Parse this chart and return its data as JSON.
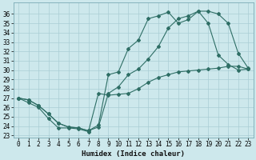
{
  "xlabel": "Humidex (Indice chaleur)",
  "bg_color": "#cde8ec",
  "line_color": "#2e6e65",
  "grid_color": "#aacdd4",
  "xlim_min": -0.5,
  "xlim_max": 23.5,
  "ylim_min": 22.8,
  "ylim_max": 37.2,
  "xticks": [
    0,
    1,
    2,
    3,
    4,
    5,
    6,
    7,
    8,
    9,
    10,
    11,
    12,
    13,
    14,
    15,
    16,
    17,
    18,
    19,
    20,
    21,
    22,
    23
  ],
  "yticks": [
    23,
    24,
    25,
    26,
    27,
    28,
    29,
    30,
    31,
    32,
    33,
    34,
    35,
    36
  ],
  "line1_x": [
    0,
    1,
    2,
    3,
    4,
    5,
    6,
    7,
    8,
    9,
    10,
    11,
    12,
    13,
    14,
    15,
    16,
    17,
    18,
    19,
    20,
    21,
    22,
    23
  ],
  "line1_y": [
    27,
    26.5,
    26.0,
    24.8,
    23.8,
    23.8,
    23.7,
    23.4,
    27.5,
    27.3,
    27.4,
    27.5,
    28.0,
    28.7,
    29.2,
    29.5,
    29.8,
    29.9,
    30.0,
    30.1,
    30.2,
    30.4,
    30.4,
    30.1
  ],
  "line2_x": [
    0,
    1,
    2,
    3,
    4,
    5,
    6,
    7,
    8,
    9,
    10,
    11,
    12,
    13,
    14,
    15,
    16,
    17,
    18,
    19,
    20,
    21,
    22,
    23
  ],
  "line2_y": [
    27,
    26.8,
    26.2,
    25.3,
    24.3,
    23.9,
    23.8,
    23.5,
    24.1,
    29.5,
    29.8,
    32.3,
    33.2,
    35.5,
    35.8,
    36.2,
    35.0,
    35.4,
    36.3,
    35.0,
    31.6,
    30.6,
    30.0,
    30.1
  ],
  "line3_x": [
    0,
    1,
    2,
    3,
    4,
    5,
    6,
    7,
    8,
    9,
    10,
    11,
    12,
    13,
    14,
    15,
    16,
    17,
    18,
    19,
    20,
    21,
    22,
    23
  ],
  "line3_y": [
    27,
    26.8,
    26.2,
    25.3,
    24.3,
    23.9,
    23.8,
    23.5,
    23.9,
    27.5,
    28.2,
    29.5,
    30.1,
    31.2,
    32.5,
    34.5,
    35.5,
    35.8,
    36.3,
    36.3,
    36.0,
    35.0,
    31.8,
    30.2
  ],
  "xlabel_fontsize": 6.5,
  "tick_fontsize": 5.5
}
